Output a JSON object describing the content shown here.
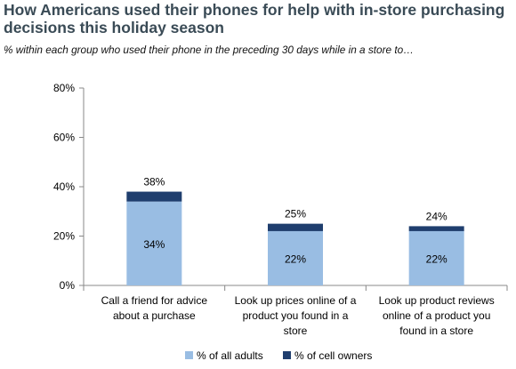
{
  "title": "How Americans used their phones for help with in-store purchasing decisions this holiday season",
  "subtitle": "% within each group who used their phone in the preceding 30 days while in a store to…",
  "colors": {
    "adults": "#99bde3",
    "cell_owners": "#1f3e6e",
    "axis": "#888888"
  },
  "chart_data": {
    "type": "bar",
    "stacked": true,
    "categories": [
      [
        "Call a friend for advice",
        "about a purchase"
      ],
      [
        "Look up prices online of a",
        "product you found in a",
        "store"
      ],
      [
        "Look up product reviews",
        "online of a product you",
        "found in a store"
      ]
    ],
    "series": [
      {
        "name": "% of all adults",
        "values": [
          34,
          22,
          22
        ],
        "labels": [
          "34%",
          "22%",
          "22%"
        ]
      },
      {
        "name": "% of cell owners",
        "values": [
          38,
          25,
          24
        ],
        "labels": [
          "38%",
          "25%",
          "24%"
        ]
      }
    ],
    "ylim": [
      0,
      80
    ],
    "yticks": [
      "0%",
      "20%",
      "40%",
      "60%",
      "80%"
    ],
    "ytick_values": [
      0,
      20,
      40,
      60,
      80
    ],
    "grid": false,
    "legend_position": "bottom"
  }
}
